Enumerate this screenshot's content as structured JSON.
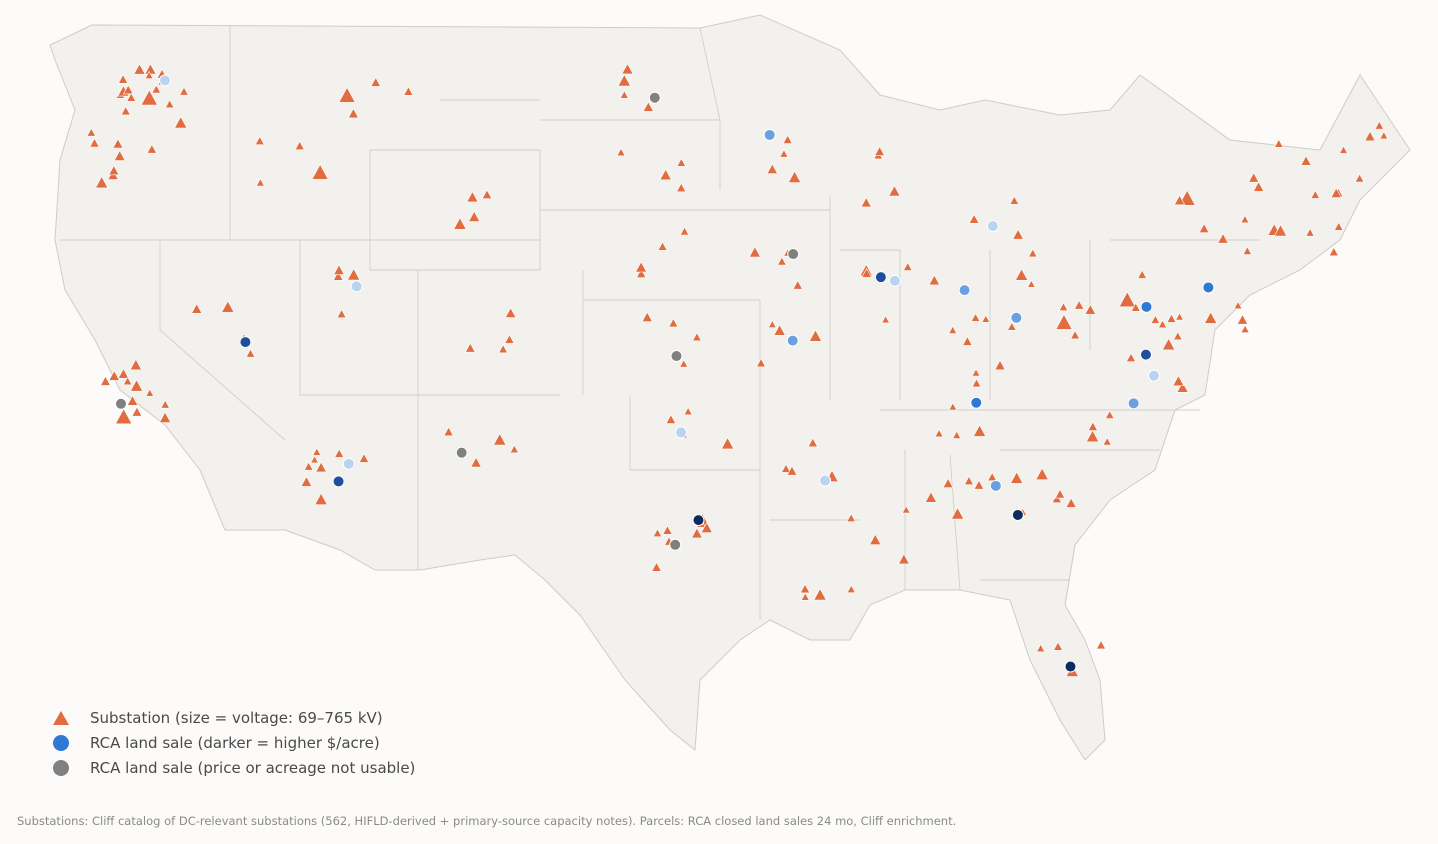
{
  "legend": {
    "substation_label": "Substation (size = voltage: 69–765 kV)",
    "rca_label": "RCA land sale (darker = higher $/acre)",
    "rca_unusable_label": "RCA land sale (price or acreage not usable)"
  },
  "footnote": "Substations: Cliff catalog of DC-relevant substations (562, HIFLD-derived + primary-source capacity notes). Parcels: RCA closed land sales 24 mo, Cliff enrichment.",
  "colors": {
    "land": "#f3f1ee",
    "border": "#cfccc6",
    "substation": "#e06c3f",
    "rca_light": "#b9d3f2",
    "rca_mid": "#6a9fe0",
    "rca_blue": "#2f78d4",
    "rca_dark": "#1f4f9c",
    "rca_darkest": "#0e2b5e",
    "rca_unusable": "#808080"
  },
  "map_data": {
    "substations": [
      [
        "WA",
        "l"
      ],
      [
        "WA",
        "s"
      ],
      [
        "WA",
        "m"
      ],
      [
        "WA",
        "s"
      ],
      [
        "OR",
        "m"
      ],
      [
        "OR",
        "s"
      ],
      [
        "CA",
        "m"
      ],
      [
        "CA",
        "s"
      ],
      [
        "CA",
        "l"
      ],
      [
        "NV",
        "m"
      ],
      [
        "AZ",
        "m"
      ],
      [
        "AZ",
        "s"
      ],
      [
        "UT",
        "m"
      ],
      [
        "ID",
        "l"
      ],
      [
        "MT",
        "l"
      ],
      [
        "WY",
        "m"
      ],
      [
        "CO",
        "s"
      ],
      [
        "NM",
        "m"
      ],
      [
        "TX",
        "m"
      ],
      [
        "TX",
        "s"
      ],
      [
        "OK",
        "m"
      ],
      [
        "KS",
        "s"
      ],
      [
        "NE",
        "s"
      ],
      [
        "SD",
        "s"
      ],
      [
        "ND",
        "m"
      ],
      [
        "MN",
        "m"
      ],
      [
        "IA",
        "s"
      ],
      [
        "MO",
        "m"
      ],
      [
        "AR",
        "m"
      ],
      [
        "LA",
        "m"
      ],
      [
        "MS",
        "s"
      ],
      [
        "AL",
        "m"
      ],
      [
        "GA",
        "m"
      ],
      [
        "FL",
        "m"
      ],
      [
        "SC",
        "m"
      ],
      [
        "NC",
        "m"
      ],
      [
        "TN",
        "m"
      ],
      [
        "KY",
        "s"
      ],
      [
        "VA",
        "m"
      ],
      [
        "WV",
        "l"
      ],
      [
        "OH",
        "m"
      ],
      [
        "IN",
        "s"
      ],
      [
        "IL",
        "m"
      ],
      [
        "WI",
        "s"
      ],
      [
        "MI",
        "s"
      ],
      [
        "PA",
        "l"
      ],
      [
        "NY",
        "l"
      ],
      [
        "NJ",
        "m"
      ],
      [
        "MD",
        "s"
      ],
      [
        "CT",
        "m"
      ],
      [
        "MA",
        "m"
      ],
      [
        "VT",
        "s"
      ],
      [
        "NH",
        "s"
      ],
      [
        "ME",
        "s"
      ]
    ],
    "rca_sales": [
      [
        "WA",
        "light"
      ],
      [
        "CA",
        "unusable"
      ],
      [
        "NV",
        "dark"
      ],
      [
        "AZ",
        "dark"
      ],
      [
        "AZ",
        "light"
      ],
      [
        "UT",
        "light"
      ],
      [
        "NM",
        "unusable"
      ],
      [
        "TX",
        "darkest"
      ],
      [
        "TX",
        "unusable"
      ],
      [
        "OK",
        "light"
      ],
      [
        "KS",
        "unusable"
      ],
      [
        "MO",
        "mid"
      ],
      [
        "IA",
        "unusable"
      ],
      [
        "MN",
        "mid"
      ],
      [
        "IL",
        "dark"
      ],
      [
        "IL",
        "light"
      ],
      [
        "IN",
        "mid"
      ],
      [
        "OH",
        "mid"
      ],
      [
        "MI",
        "light"
      ],
      [
        "GA",
        "darkest"
      ],
      [
        "GA",
        "mid"
      ],
      [
        "NC",
        "mid"
      ],
      [
        "TN",
        "blue"
      ],
      [
        "VA",
        "dark"
      ],
      [
        "VA",
        "light"
      ],
      [
        "PA",
        "blue"
      ],
      [
        "NJ",
        "blue"
      ],
      [
        "FL",
        "darkest"
      ],
      [
        "AR",
        "light"
      ],
      [
        "ND",
        "unusable"
      ]
    ]
  }
}
